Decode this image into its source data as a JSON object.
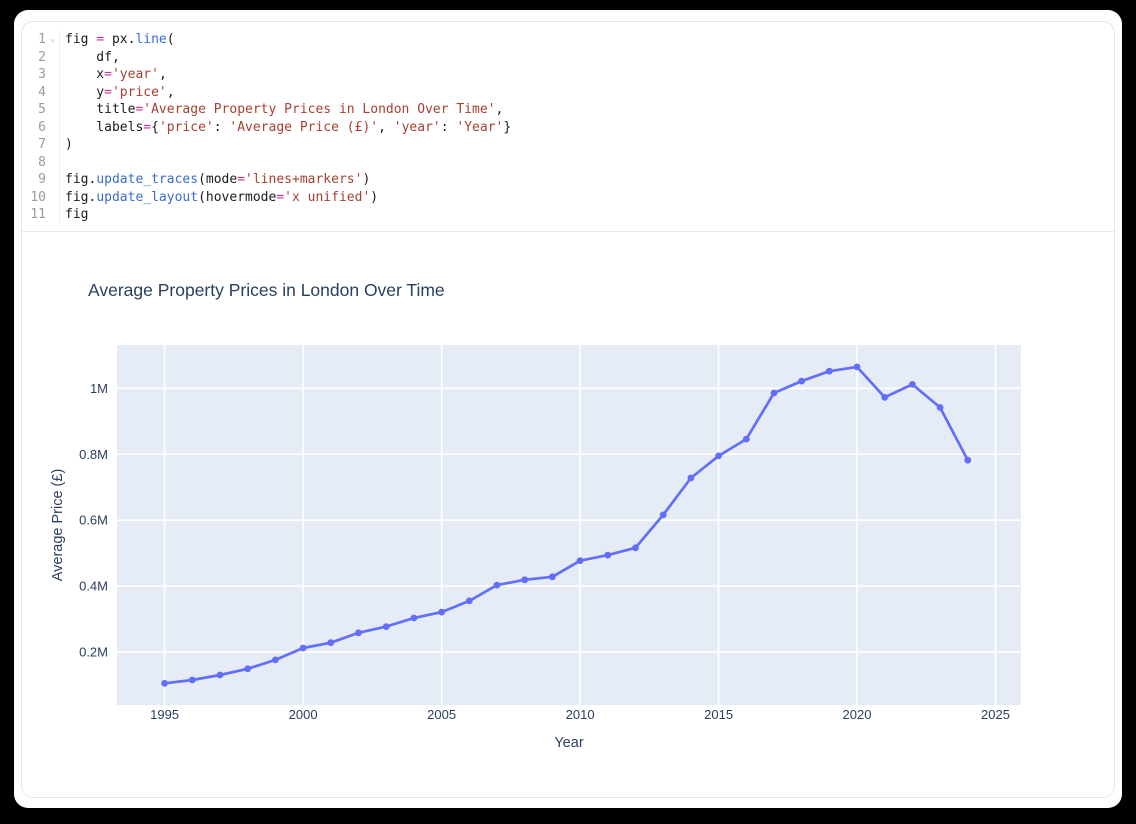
{
  "ui": {
    "colors": {
      "frame_bg": "#000000",
      "panel_bg": "#ffffff",
      "border": "#e7e7e9",
      "code_plain": "#1b1b1b",
      "code_linenum": "#9b9b9b",
      "code_operator": "#d0308d",
      "code_function": "#3b6cd6",
      "code_string": "#a84032",
      "chart_text": "#2a3f5f"
    },
    "fold_chevron": "⌄"
  },
  "editor": {
    "language": "python",
    "lines": [
      {
        "num": "1",
        "fold": true,
        "tokens": [
          [
            "fig ",
            "pl"
          ],
          [
            "=",
            "op"
          ],
          [
            " px.",
            "pl"
          ],
          [
            "line",
            "fn"
          ],
          [
            "(",
            "pl"
          ]
        ]
      },
      {
        "num": "2",
        "fold": false,
        "tokens": [
          [
            "    df,",
            "pl"
          ]
        ]
      },
      {
        "num": "3",
        "fold": false,
        "tokens": [
          [
            "    x",
            "pl"
          ],
          [
            "=",
            "op"
          ],
          [
            "'year'",
            "str"
          ],
          [
            ",",
            "pl"
          ]
        ]
      },
      {
        "num": "4",
        "fold": false,
        "tokens": [
          [
            "    y",
            "pl"
          ],
          [
            "=",
            "op"
          ],
          [
            "'price'",
            "str"
          ],
          [
            ",",
            "pl"
          ]
        ]
      },
      {
        "num": "5",
        "fold": false,
        "tokens": [
          [
            "    title",
            "pl"
          ],
          [
            "=",
            "op"
          ],
          [
            "'Average Property Prices in London Over Time'",
            "str"
          ],
          [
            ",",
            "pl"
          ]
        ]
      },
      {
        "num": "6",
        "fold": false,
        "tokens": [
          [
            "    labels",
            "pl"
          ],
          [
            "=",
            "op"
          ],
          [
            "{",
            "pl"
          ],
          [
            "'price'",
            "str"
          ],
          [
            ": ",
            "pl"
          ],
          [
            "'Average Price (£)'",
            "str"
          ],
          [
            ", ",
            "pl"
          ],
          [
            "'year'",
            "str"
          ],
          [
            ": ",
            "pl"
          ],
          [
            "'Year'",
            "str"
          ],
          [
            "}",
            "pl"
          ]
        ]
      },
      {
        "num": "7",
        "fold": false,
        "tokens": [
          [
            ")",
            "pl"
          ]
        ]
      },
      {
        "num": "8",
        "fold": false,
        "tokens": []
      },
      {
        "num": "9",
        "fold": false,
        "tokens": [
          [
            "fig.",
            "pl"
          ],
          [
            "update_traces",
            "fn"
          ],
          [
            "(mode",
            "pl"
          ],
          [
            "=",
            "op"
          ],
          [
            "'lines+markers'",
            "str"
          ],
          [
            ")",
            "pl"
          ]
        ]
      },
      {
        "num": "10",
        "fold": false,
        "tokens": [
          [
            "fig.",
            "pl"
          ],
          [
            "update_layout",
            "fn"
          ],
          [
            "(hovermode",
            "pl"
          ],
          [
            "=",
            "op"
          ],
          [
            "'x unified'",
            "str"
          ],
          [
            ")",
            "pl"
          ]
        ]
      },
      {
        "num": "11",
        "fold": false,
        "tokens": [
          [
            "fig",
            "pl"
          ]
        ]
      }
    ]
  },
  "chart_data": {
    "type": "line",
    "mode": "lines+markers",
    "title": "Average Property Prices in London Over Time",
    "xlabel": "Year",
    "ylabel": "Average Price (£)",
    "line_color": "#636efa",
    "plot_bg": "#e5ecf6",
    "grid_color": "#ffffff",
    "grid": true,
    "legend": "none",
    "xlim": [
      1993.28,
      2025.92
    ],
    "ylim": [
      39000,
      1131600
    ],
    "x_ticks": [
      {
        "label": "1995",
        "value": 1995
      },
      {
        "label": "2000",
        "value": 2000
      },
      {
        "label": "2005",
        "value": 2005
      },
      {
        "label": "2010",
        "value": 2010
      },
      {
        "label": "2015",
        "value": 2015
      },
      {
        "label": "2020",
        "value": 2020
      },
      {
        "label": "2025",
        "value": 2025
      }
    ],
    "y_ticks": [
      {
        "label": "0.2M",
        "value": 200000
      },
      {
        "label": "0.4M",
        "value": 400000
      },
      {
        "label": "0.6M",
        "value": 600000
      },
      {
        "label": "0.8M",
        "value": 800000
      },
      {
        "label": "1M",
        "value": 1000000
      }
    ],
    "series": [
      {
        "name": "price",
        "x": [
          1995,
          1996,
          1997,
          1998,
          1999,
          2000,
          2001,
          2002,
          2003,
          2004,
          2005,
          2006,
          2007,
          2008,
          2009,
          2010,
          2011,
          2012,
          2013,
          2014,
          2015,
          2016,
          2017,
          2018,
          2019,
          2020,
          2021,
          2022,
          2023,
          2024
        ],
        "y": [
          105000,
          115000,
          130000,
          149000,
          176000,
          212000,
          228000,
          258000,
          277000,
          303000,
          321000,
          355000,
          403000,
          419000,
          428000,
          477000,
          494000,
          516000,
          616000,
          728000,
          795000,
          846000,
          986000,
          1022000,
          1052000,
          1065000,
          973000,
          1012000,
          942000,
          782000
        ]
      }
    ]
  }
}
